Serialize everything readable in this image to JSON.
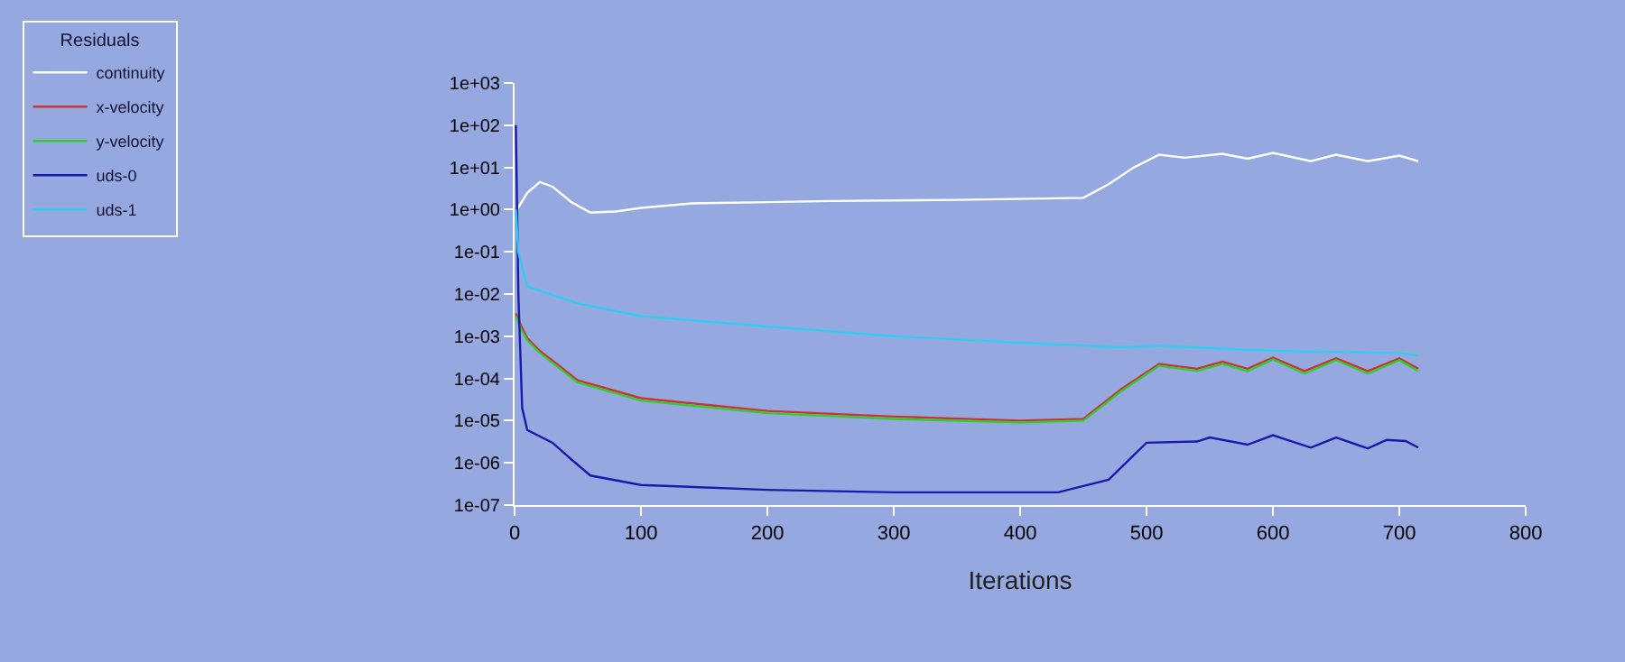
{
  "chart_data": {
    "type": "line",
    "xlabel": "Iterations",
    "legend_title": "Residuals",
    "legend": "top left",
    "grid": false,
    "marker": "none",
    "line_style": "solid",
    "log": "y",
    "xlim": [
      0,
      800
    ],
    "xticks": [
      0,
      100,
      200,
      300,
      400,
      500,
      600,
      700,
      800
    ],
    "ylim": [
      1e-07,
      1000
    ],
    "yticks": [
      {
        "value": 1000,
        "label": "1e+03"
      },
      {
        "value": 100,
        "label": "1e+02"
      },
      {
        "value": 10,
        "label": "1e+01"
      },
      {
        "value": 1,
        "label": "1e+00"
      },
      {
        "value": 0.1,
        "label": "1e-01"
      },
      {
        "value": 0.01,
        "label": "1e-02"
      },
      {
        "value": 0.001,
        "label": "1e-03"
      },
      {
        "value": 0.0001,
        "label": "1e-04"
      },
      {
        "value": 1e-05,
        "label": "1e-05"
      },
      {
        "value": 1e-06,
        "label": "1e-06"
      },
      {
        "value": 1e-07,
        "label": "1e-07"
      }
    ],
    "series": [
      {
        "name": "continuity",
        "color": "#ffffff",
        "x": [
          1,
          10,
          20,
          30,
          45,
          60,
          80,
          100,
          140,
          200,
          250,
          350,
          450,
          470,
          490,
          510,
          530,
          560,
          580,
          600,
          630,
          650,
          675,
          700,
          715
        ],
        "values": [
          0.9,
          2.5,
          4.5,
          3.5,
          1.5,
          0.85,
          0.9,
          1.1,
          1.4,
          1.5,
          1.6,
          1.7,
          1.9,
          4,
          10,
          20,
          17,
          21,
          16,
          22,
          14,
          20,
          14,
          19,
          14
        ]
      },
      {
        "name": "x-velocity",
        "color": "#cc3333",
        "x": [
          1,
          5,
          10,
          20,
          50,
          100,
          200,
          300,
          400,
          450,
          480,
          510,
          540,
          560,
          580,
          600,
          625,
          650,
          675,
          700,
          715
        ],
        "values": [
          0.0035,
          0.0018,
          0.0009,
          0.00045,
          9e-05,
          3.4e-05,
          1.7e-05,
          1.25e-05,
          1e-05,
          1.1e-05,
          5.6e-05,
          0.00022,
          0.00017,
          0.00025,
          0.00017,
          0.00031,
          0.00015,
          0.0003,
          0.00015,
          0.0003,
          0.00017
        ]
      },
      {
        "name": "y-velocity",
        "color": "#33cc33",
        "x": [
          1,
          5,
          10,
          20,
          50,
          100,
          200,
          300,
          400,
          450,
          480,
          510,
          540,
          560,
          580,
          600,
          625,
          650,
          675,
          700,
          715
        ],
        "values": [
          0.003,
          0.0015,
          0.0008,
          0.0004,
          8e-05,
          3e-05,
          1.5e-05,
          1.1e-05,
          9e-06,
          1e-05,
          5e-05,
          0.0002,
          0.00015,
          0.00022,
          0.00015,
          0.00028,
          0.00013,
          0.00027,
          0.00013,
          0.00027,
          0.00015
        ]
      },
      {
        "name": "uds-0",
        "color": "#1a1aaa",
        "x": [
          1,
          3,
          6,
          10,
          30,
          45,
          60,
          100,
          200,
          300,
          430,
          470,
          500,
          540,
          550,
          580,
          600,
          630,
          650,
          675,
          690,
          705,
          715
        ],
        "values": [
          100,
          0.01,
          2e-05,
          6e-06,
          3e-06,
          1.2e-06,
          5e-07,
          3e-07,
          2.3e-07,
          2e-07,
          2e-07,
          4e-07,
          3e-06,
          3.2e-06,
          4e-06,
          2.7e-06,
          4.5e-06,
          2.3e-06,
          4e-06,
          2.2e-06,
          3.5e-06,
          3.3e-06,
          2.3e-06
        ]
      },
      {
        "name": "uds-1",
        "color": "#33ccee",
        "x": [
          1,
          3,
          10,
          50,
          100,
          200,
          300,
          400,
          480,
          510,
          600,
          700,
          715
        ],
        "values": [
          1,
          0.1,
          0.015,
          0.006,
          0.003,
          0.0017,
          0.001,
          0.0007,
          0.00055,
          0.0006,
          0.00045,
          0.0004,
          0.00035
        ]
      }
    ]
  }
}
